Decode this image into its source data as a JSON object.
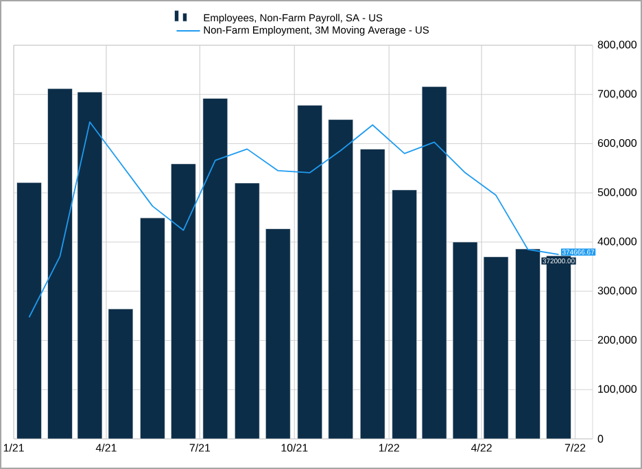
{
  "chart_data": {
    "type": "bar",
    "x": [
      "2021-01-16",
      "2021-02-15",
      "2021-03-16",
      "2021-04-15",
      "2021-05-16",
      "2021-06-15",
      "2021-07-16",
      "2021-08-16",
      "2021-09-15",
      "2021-10-16",
      "2021-11-15",
      "2021-12-16",
      "2022-01-16",
      "2022-02-14",
      "2022-03-16",
      "2022-04-15",
      "2022-05-16",
      "2022-06-15"
    ],
    "series": [
      {
        "name": "Employees, Non-Farm Payroll, SA - US",
        "color": "#0c2d48",
        "values": [
          521000,
          712000,
          705000,
          264000,
          449000,
          559000,
          692000,
          520000,
          427000,
          678000,
          649000,
          589000,
          506000,
          716000,
          400000,
          370000,
          386000,
          372000
        ],
        "value_labels": [
          null,
          null,
          null,
          null,
          null,
          null,
          null,
          null,
          null,
          null,
          null,
          null,
          null,
          null,
          null,
          null,
          null,
          "372000.00"
        ]
      },
      {
        "name": "Non-Farm Employment, 3M Moving Average - US",
        "type": "line",
        "color": "#1e9bf0",
        "marker": "none",
        "values": [
          247000,
          371000,
          644000,
          560000,
          473000,
          424000,
          566000,
          589000,
          545000,
          541000,
          586000,
          638000,
          580000,
          603000,
          541000,
          495000,
          385000,
          374666.67
        ],
        "value_labels": [
          null,
          null,
          null,
          null,
          null,
          null,
          null,
          null,
          null,
          null,
          null,
          null,
          null,
          null,
          null,
          null,
          null,
          "374666.67"
        ]
      }
    ],
    "xlim": [
      "2021-01-01",
      "2022-07-18"
    ],
    "xticks": [
      {
        "value": "2021-01-01",
        "label": "1/21"
      },
      {
        "value": "2021-04-01",
        "label": "4/21"
      },
      {
        "value": "2021-07-01",
        "label": "7/21"
      },
      {
        "value": "2021-10-01",
        "label": "10/21"
      },
      {
        "value": "2022-01-01",
        "label": "1/22"
      },
      {
        "value": "2022-04-01",
        "label": "4/22"
      },
      {
        "value": "2022-07-01",
        "label": "7/22"
      }
    ],
    "ylim": [
      0,
      800000
    ],
    "yticks": [
      0,
      {
        "value": 100000,
        "label": "100,000"
      },
      {
        "value": 200000,
        "label": "200,000"
      },
      {
        "value": 300000,
        "label": "300,000"
      },
      {
        "value": 400000,
        "label": "400,000"
      },
      {
        "value": 500000,
        "label": "500,000"
      },
      {
        "value": 600000,
        "label": "600,000"
      },
      {
        "value": 700000,
        "label": "700,000"
      },
      {
        "value": 800000,
        "label": "800,000"
      }
    ],
    "grid": true,
    "legend": "top"
  }
}
